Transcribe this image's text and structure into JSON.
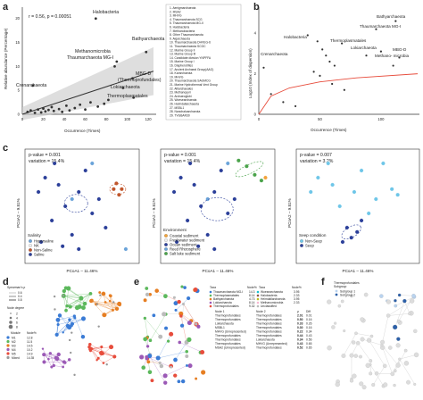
{
  "panel_letters": [
    "a",
    "b",
    "c",
    "d",
    "e",
    "f"
  ],
  "panel_a": {
    "ylabel": "Relative abundance (Percentage)",
    "xlabel": "Occurrence (Times)",
    "stat": "r = 0.56, p = 0.00051",
    "yticks": [
      "0",
      "5",
      "10",
      "15",
      "20"
    ],
    "xticks": [
      "0",
      "20",
      "40",
      "60",
      "80",
      "100",
      "120"
    ],
    "labels": {
      "halobacteria": "Halobacteria",
      "bathyarchaeota": "Bathyarchaeota",
      "methanomicrobia": "Methanomicrobia",
      "thaum": "Thaumarchaeota MG-I",
      "crenarchaeota": "Crenarchaeota",
      "mbgd": "MBG-D",
      "mbgd2": "(Thermoprofundales)",
      "lokiarchaeota": "Lokiarchaeota",
      "thermoplasmatales": "Thermoplasmatales"
    },
    "legend": [
      "1. Aenigmarchaeota",
      "2. MSA2",
      "3. MHVG",
      "4. Thaumarchaeota SCG",
      "5. Thaumarchaeota MG-II",
      "6. Halobacteria",
      "7. Methanobacteria",
      "8. Other Thaumarchaeota",
      "9. Aigarchaeota",
      "10. Thaumarchaeota DHVEG-6",
      "11. Thaumarchaeota SCGC",
      "12. Marine Group II",
      "13. Marine Group III",
      "14. Candidate division YNPFFA",
      "15. Marine Group I",
      "16. Diapherotrites",
      "17. Ancient Archaeal Group(AAG)",
      "18. Korarchaeota",
      "19. MHVG",
      "20. Thaumarchaeota SAGMCG",
      "21. Marine Hydrothermal Vent Group",
      "22. Altiarchaeales",
      "23. Methanopyri",
      "24. Archaeoglobi",
      "25. Woesearchaeota",
      "26. Heimdallarchaeota",
      "27. MSBL1",
      "28. Nanohaloarchaeota",
      "29. TVGBAR30"
    ],
    "chart_data": {
      "type": "scatter",
      "xlabel": "Occurrence (Times)",
      "ylabel": "Relative abundance (Percentage)",
      "xlim": [
        0,
        125
      ],
      "ylim": [
        0,
        22
      ],
      "points": [
        {
          "x": 70,
          "y": 20,
          "label": "Halobacteria"
        },
        {
          "x": 118,
          "y": 13,
          "label": "Bathyarchaeota"
        },
        {
          "x": 90,
          "y": 11,
          "label": "Methanomicrobia"
        },
        {
          "x": 88,
          "y": 10,
          "label": "Thaumarchaeota MG-I"
        },
        {
          "x": 10,
          "y": 6,
          "label": "Crenarchaeota"
        },
        {
          "x": 105,
          "y": 7.5,
          "label": "MBG-D"
        },
        {
          "x": 96,
          "y": 5.5,
          "label": "Lokiarchaeota"
        },
        {
          "x": 106,
          "y": 3.5,
          "label": "Thermoplasmatales"
        },
        {
          "x": 5,
          "y": 0.5
        },
        {
          "x": 8,
          "y": 0.8
        },
        {
          "x": 12,
          "y": 0.3
        },
        {
          "x": 15,
          "y": 1.0
        },
        {
          "x": 18,
          "y": 0.4
        },
        {
          "x": 20,
          "y": 1.2
        },
        {
          "x": 22,
          "y": 0.6
        },
        {
          "x": 25,
          "y": 0.9
        },
        {
          "x": 28,
          "y": 1.5
        },
        {
          "x": 30,
          "y": 0.7
        },
        {
          "x": 35,
          "y": 1.1
        },
        {
          "x": 38,
          "y": 0.5
        },
        {
          "x": 42,
          "y": 1.8
        },
        {
          "x": 45,
          "y": 0.8
        },
        {
          "x": 50,
          "y": 1.3
        },
        {
          "x": 55,
          "y": 2.0
        },
        {
          "x": 60,
          "y": 1.0
        },
        {
          "x": 65,
          "y": 2.5
        },
        {
          "x": 72,
          "y": 1.6
        },
        {
          "x": 78,
          "y": 2.2
        },
        {
          "x": 82,
          "y": 3.0
        }
      ],
      "trend": [
        [
          0,
          0
        ],
        [
          125,
          9
        ]
      ]
    }
  },
  "panel_b": {
    "ylabel": "Log10 (Index of dispersion)",
    "xlabel": "Occurrence (Times)",
    "yticks": [
      "0",
      "2",
      "4"
    ],
    "xticks": [
      "0",
      "50",
      "100"
    ],
    "labels": {
      "halobacteria": "Halobacteria",
      "bathyarchaeota": "Bathyarchaeota",
      "thaum": "Thaumarchaeota MG-I",
      "crenarchaeota": "Crenarchaeota",
      "thermoplasmatales": "Thermoplasmatales",
      "lokiarchaeota": "Lokiarchaeota",
      "methanomicrobia": "Methano-\nmicrobia",
      "mbgd": "MBG-D"
    },
    "chart_data": {
      "type": "scatter",
      "xlabel": "Occurrence (Times)",
      "ylabel": "Log10 (Index of dispersion)",
      "xlim": [
        0,
        130
      ],
      "ylim": [
        0,
        5.2
      ],
      "points": [
        {
          "x": 68,
          "y": 3.5,
          "label": "Halobacteria"
        },
        {
          "x": 112,
          "y": 4.6,
          "label": "Bathyarchaeota"
        },
        {
          "x": 96,
          "y": 4.2,
          "label": "Thaumarchaeota MG-I"
        },
        {
          "x": 4,
          "y": 2.3,
          "label": "Crenarchaeota"
        },
        {
          "x": 100,
          "y": 3.1,
          "label": "Thermoplasmatales"
        },
        {
          "x": 88,
          "y": 2.9,
          "label": "Lokiarchaeota"
        },
        {
          "x": 110,
          "y": 2.4,
          "label": "Methanomicrobia"
        },
        {
          "x": 115,
          "y": 2.8,
          "label": "MBG-D"
        },
        {
          "x": 40,
          "y": 3.9
        },
        {
          "x": 48,
          "y": 3.6
        },
        {
          "x": 52,
          "y": 3.2
        },
        {
          "x": 55,
          "y": 2.9
        },
        {
          "x": 58,
          "y": 2.6
        },
        {
          "x": 62,
          "y": 2.4
        },
        {
          "x": 45,
          "y": 2.1
        },
        {
          "x": 50,
          "y": 1.9
        },
        {
          "x": 60,
          "y": 1.5
        },
        {
          "x": 70,
          "y": 1.2
        },
        {
          "x": 10,
          "y": 1.0
        },
        {
          "x": 20,
          "y": 0.6
        },
        {
          "x": 30,
          "y": 0.4
        }
      ],
      "fit": [
        [
          0,
          0
        ],
        [
          10,
          0.9
        ],
        [
          25,
          1.3
        ],
        [
          50,
          1.6
        ],
        [
          80,
          1.8
        ],
        [
          130,
          2.0
        ]
      ]
    }
  },
  "panel_c": [
    {
      "pvalue": "p-value = 0.001",
      "variation": "variation = 15.4%",
      "xlabel": "PCoA1 – 11.46%",
      "ylabel": "PCoA2 – 9.81%",
      "legend_title": "Salinity",
      "legend": [
        {
          "label": "Hypersaline",
          "color": "#6aa3d9"
        },
        {
          "label": "NK",
          "color": "#eeeeee"
        },
        {
          "label": "Non-Saline",
          "color": "#c0552b"
        },
        {
          "label": "Saline",
          "color": "#2b3f99"
        }
      ],
      "chart_data": {
        "type": "scatter",
        "xlabel": "PCoA1 – 11.46%",
        "ylabel": "PCoA2 – 9.81%",
        "xlim": [
          -0.4,
          0.45
        ],
        "ylim": [
          -0.4,
          0.4
        ],
        "series": [
          {
            "name": "Saline",
            "points": [
              [
                -0.3,
                0.1
              ],
              [
                -0.25,
                0.2
              ],
              [
                -0.2,
                -0.1
              ],
              [
                -0.15,
                0.15
              ],
              [
                -0.1,
                0.0
              ],
              [
                -0.05,
                -0.2
              ],
              [
                0.0,
                0.1
              ],
              [
                0.05,
                0.25
              ],
              [
                0.1,
                -0.05
              ],
              [
                -0.28,
                -0.25
              ],
              [
                -0.18,
                0.3
              ],
              [
                0.15,
                0.05
              ],
              [
                0.0,
                -0.3
              ],
              [
                -0.12,
                -0.28
              ],
              [
                0.2,
                -0.15
              ]
            ]
          },
          {
            "name": "Non-Saline",
            "points": [
              [
                0.26,
                0.12
              ],
              [
                0.3,
                0.08
              ],
              [
                0.28,
                0.16
              ],
              [
                0.32,
                0.12
              ]
            ]
          },
          {
            "name": "Hypersaline",
            "points": [
              [
                -0.05,
                0.05
              ],
              [
                0.35,
                -0.3
              ],
              [
                0.1,
                0.3
              ]
            ]
          }
        ]
      }
    },
    {
      "pvalue": "p-value = 0.001",
      "variation": "variation = 15.4%",
      "xlabel": "PCoA1 – 11.46%",
      "ylabel": "PCoA2 – 9.81%",
      "legend_title": "Environment",
      "legend": [
        {
          "label": "Coastal sediment",
          "color": "#f2a33a"
        },
        {
          "label": "Freshwater sediment",
          "color": "#eeeeee"
        },
        {
          "label": "Ocean sediment",
          "color": "#2b3f99"
        },
        {
          "label": "Reed Rhizosphere",
          "color": "#6aa3d9"
        },
        {
          "label": "Salt lake sediment",
          "color": "#4aa34a"
        }
      ],
      "chart_data": {
        "type": "scatter",
        "xlabel": "PCoA1 – 11.46%",
        "ylabel": "PCoA2 – 9.81%",
        "xlim": [
          -0.4,
          0.45
        ],
        "ylim": [
          -0.4,
          0.4
        ],
        "series": [
          {
            "name": "Ocean sediment",
            "points": [
              [
                -0.3,
                0.1
              ],
              [
                -0.25,
                0.2
              ],
              [
                -0.2,
                -0.1
              ],
              [
                -0.15,
                0.15
              ],
              [
                -0.1,
                0.0
              ],
              [
                -0.05,
                -0.2
              ],
              [
                0.0,
                0.1
              ],
              [
                0.05,
                0.25
              ],
              [
                0.1,
                -0.05
              ],
              [
                -0.28,
                -0.25
              ],
              [
                -0.18,
                0.3
              ],
              [
                0.15,
                0.05
              ],
              [
                0.0,
                -0.3
              ],
              [
                -0.12,
                -0.28
              ]
            ]
          },
          {
            "name": "Salt lake sediment",
            "points": [
              [
                0.18,
                0.32
              ],
              [
                0.24,
                0.28
              ],
              [
                0.3,
                0.22
              ],
              [
                0.35,
                0.18
              ]
            ]
          },
          {
            "name": "Coastal sediment",
            "points": [
              [
                0.38,
                0.2
              ]
            ]
          },
          {
            "name": "Reed Rhizosphere",
            "points": [
              [
                -0.05,
                0.05
              ],
              [
                0.1,
                0.3
              ]
            ]
          }
        ]
      }
    },
    {
      "pvalue": "p-value = 0.007",
      "variation": "variation = 3.2%",
      "xlabel": "PCoA1 – 11.46%",
      "ylabel": "PCoA2 – 9.81%",
      "legend_title": "Seep condition",
      "legend": [
        {
          "label": "Non-Seep",
          "color": "#6ec6e8"
        },
        {
          "label": "Seep",
          "color": "#2b3f99"
        }
      ],
      "chart_data": {
        "type": "scatter",
        "xlabel": "PCoA1 – 11.46%",
        "ylabel": "PCoA2 – 9.81%",
        "xlim": [
          -0.4,
          0.45
        ],
        "ylim": [
          -0.4,
          0.4
        ],
        "series": [
          {
            "name": "Non-Seep",
            "points": [
              [
                -0.3,
                0.1
              ],
              [
                -0.25,
                0.2
              ],
              [
                -0.15,
                0.15
              ],
              [
                -0.1,
                0.0
              ],
              [
                0.0,
                0.1
              ],
              [
                0.05,
                0.25
              ],
              [
                0.1,
                -0.05
              ],
              [
                -0.18,
                0.3
              ],
              [
                0.15,
                0.05
              ],
              [
                0.26,
                0.12
              ],
              [
                0.3,
                0.08
              ],
              [
                0.2,
                0.3
              ]
            ]
          },
          {
            "name": "Seep",
            "points": [
              [
                -0.05,
                -0.15
              ],
              [
                -0.02,
                -0.22
              ],
              [
                0.02,
                -0.18
              ],
              [
                -0.08,
                -0.25
              ],
              [
                0.05,
                -0.1
              ]
            ]
          }
        ]
      }
    }
  ],
  "panel_d": {
    "legend_title_1": "Spearman's ρ",
    "rho_ticks": [
      "0.6",
      "0.4",
      "0.8"
    ],
    "legend_title_2": "Node degree",
    "degree_ticks": [
      "2",
      "4",
      "6",
      "8"
    ],
    "module_header": [
      "Module",
      "Node%"
    ],
    "modules": [
      {
        "name": "M1",
        "pct": "12.8",
        "color": "#3a7bd5"
      },
      {
        "name": "M2",
        "pct": "11.5",
        "color": "#5cb85c"
      },
      {
        "name": "M3",
        "pct": "14.5",
        "color": "#e67e22"
      },
      {
        "name": "M4",
        "pct": "10.2",
        "color": "#9b59b6"
      },
      {
        "name": "M5",
        "pct": "14.9",
        "color": "#e74c3c"
      },
      {
        "name": "Mixed",
        "pct": "14.35",
        "color": "#999999"
      }
    ]
  },
  "panel_e": {
    "header": [
      "Taxa",
      "Node%",
      "Taxa",
      "Node%"
    ],
    "taxa": [
      {
        "name": "Thaumarchaeota MG-I",
        "pct": "14.3",
        "color": "#3a7bd5"
      },
      {
        "name": "Thermoplasmatales",
        "pct": "8.14",
        "color": "#5cb85c"
      },
      {
        "name": "Bathyarchaeota",
        "pct": "4.73",
        "color": "#e67e22"
      },
      {
        "name": "Lokiarchaeota",
        "pct": "8.14",
        "color": "#9b59b6"
      },
      {
        "name": "Thermoprofundales",
        "pct": "9.32",
        "color": "#e74c3c"
      }
    ],
    "taxa2": [
      {
        "name": "Woesearchaeota",
        "pct": "3.95",
        "color": "#17becf"
      },
      {
        "name": "Halobacteria",
        "pct": "2.33",
        "color": "#8c564b"
      },
      {
        "name": "Heimdallarchaeota",
        "pct": "3.95",
        "color": "#bcbd22"
      },
      {
        "name": "Methanomicrobia",
        "pct": "2.33",
        "color": "#f7b6d2"
      },
      {
        "name": "Unclassified",
        "pct": "",
        "color": "#bbbbbb"
      }
    ],
    "edge_header": [
      "Node 1",
      "Node 2",
      "ρ",
      "Diff"
    ],
    "edges": [
      {
        "n1": "Thermoprofundales",
        "n2": "Thermoprofundales",
        "rho": "2.01",
        "diff": "0.01"
      },
      {
        "n1": "Thermoprofundales",
        "n2": "Thermoprofundales",
        "rho": "0.50",
        "diff": "0.16"
      },
      {
        "n1": "Lokiarchaeota",
        "n2": "Thermoprofundales",
        "rho": "0.33",
        "diff": "0.26"
      },
      {
        "n1": "MSBL1",
        "n2": "Thermoprofundales",
        "rho": "0.30",
        "diff": "0.16"
      },
      {
        "n1": "MHVG (Unrepresented)",
        "n2": "Thermoprofundales",
        "rho": "0.22",
        "diff": "0.34"
      },
      {
        "n1": "Thermoprofundales",
        "n2": "Thermoprofundales",
        "rho": "0.44",
        "diff": "0.43"
      },
      {
        "n1": "Thermoprofundales",
        "n2": "Lokiarchaeota",
        "rho": "0.34",
        "diff": "0.56"
      },
      {
        "n1": "Thermoprofundales",
        "n2": "MHVG (Unrepresented)",
        "rho": "0.43",
        "diff": "0.65"
      },
      {
        "n1": "MSA2 (Unrepresented)",
        "n2": "Thermoprofundales",
        "rho": "0.52",
        "diff": "0.65"
      }
    ]
  },
  "panel_f": {
    "legend_title": "Thermoprofundales",
    "legend_subtitle": "Subgroup",
    "legend": [
      {
        "label": "Subgroup 1",
        "color": "#b9d3ef"
      },
      {
        "label": "Subgroup 2",
        "color": "#2b5fa8"
      }
    ]
  }
}
